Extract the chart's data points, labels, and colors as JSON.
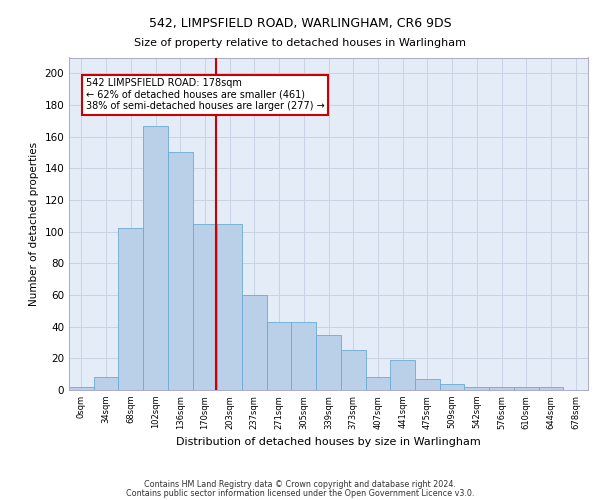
{
  "title1": "542, LIMPSFIELD ROAD, WARLINGHAM, CR6 9DS",
  "title2": "Size of property relative to detached houses in Warlingham",
  "xlabel": "Distribution of detached houses by size in Warlingham",
  "ylabel": "Number of detached properties",
  "bin_labels": [
    "0sqm",
    "34sqm",
    "68sqm",
    "102sqm",
    "136sqm",
    "170sqm",
    "203sqm",
    "237sqm",
    "271sqm",
    "305sqm",
    "339sqm",
    "373sqm",
    "407sqm",
    "441sqm",
    "475sqm",
    "509sqm",
    "542sqm",
    "576sqm",
    "610sqm",
    "644sqm",
    "678sqm"
  ],
  "bar_values": [
    2,
    8,
    102,
    167,
    150,
    105,
    105,
    60,
    43,
    43,
    35,
    25,
    8,
    19,
    7,
    4,
    2,
    2,
    2,
    2,
    0
  ],
  "bar_color": "#bad0e8",
  "bar_edge_color": "#6aaad4",
  "grid_color": "#c8d4e4",
  "background_color": "#e4ecf7",
  "annotation_text": "542 LIMPSFIELD ROAD: 178sqm\n← 62% of detached houses are smaller (461)\n38% of semi-detached houses are larger (277) →",
  "annotation_box_color": "#ffffff",
  "annotation_box_edge": "#cc0000",
  "footer1": "Contains HM Land Registry data © Crown copyright and database right 2024.",
  "footer2": "Contains public sector information licensed under the Open Government Licence v3.0.",
  "ylim": [
    0,
    210
  ],
  "yticks": [
    0,
    20,
    40,
    60,
    80,
    100,
    120,
    140,
    160,
    180,
    200
  ],
  "vline_pos": 5.45
}
